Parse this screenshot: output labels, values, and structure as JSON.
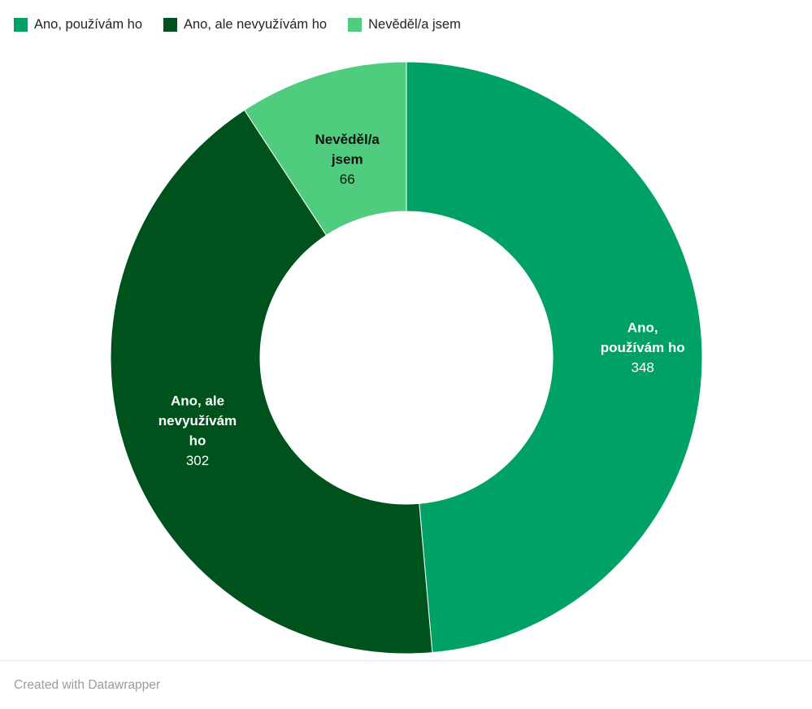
{
  "legend": {
    "items": [
      {
        "label": "Ano, používám ho"
      },
      {
        "label": "Ano, ale nevyužívám ho"
      },
      {
        "label": "Nevěděl/a jsem"
      }
    ]
  },
  "chart_data": {
    "type": "pie",
    "subtype": "donut",
    "categories": [
      "Ano, používám ho",
      "Ano, ale nevyužívám ho",
      "Nevěděl/a jsem"
    ],
    "values": [
      348,
      302,
      66
    ],
    "colors": [
      "#00a164",
      "#00521c",
      "#4fcc7e"
    ],
    "label_lines": [
      [
        "Ano,",
        "používám ho"
      ],
      [
        "Ano, ale",
        "nevyužívám",
        "ho"
      ],
      [
        "Nevěděl/a",
        "jsem"
      ]
    ],
    "label_text_colors": [
      "#ffffff",
      "#ffffff",
      "#111111"
    ],
    "legend_position": "top",
    "start_angle": 0,
    "direction": "clockwise"
  },
  "footer": {
    "credit": "Created with Datawrapper"
  }
}
